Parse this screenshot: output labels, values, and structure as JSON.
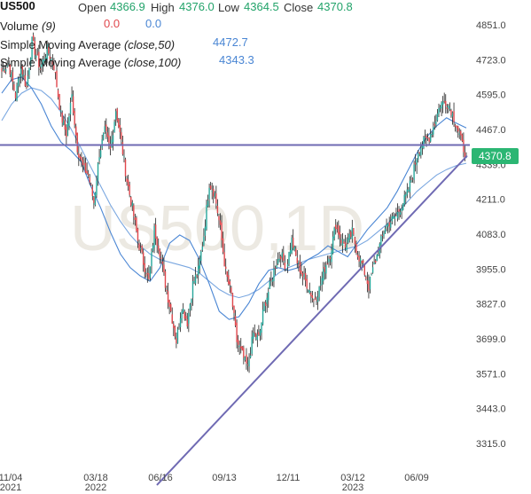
{
  "header": {
    "symbol": "US500",
    "open_label": "Open",
    "open_value": "4366.9",
    "high_label": "High",
    "high_value": "4376.0",
    "low_label": "Low",
    "low_value": "4364.5",
    "close_label": "Close",
    "close_value": "4370.8",
    "volume_label": "Volume",
    "volume_param": "(9)",
    "volume_value_1": "0.0",
    "volume_value_2": "0.0",
    "sma50_label": "Simple Moving Average",
    "sma50_param": "(close,50)",
    "sma50_value": "4472.7",
    "sma100_label": "Simple Moving Average",
    "sma100_param": "(close,100)",
    "sma100_value": "4343.3"
  },
  "watermark": "US500,1D",
  "price_tag": "4370.8",
  "colors": {
    "up": "#26a69a",
    "down": "#e0474c",
    "sma50": "#4a86d4",
    "sma100": "#7aa7e0",
    "trendline": "#6f6ab3",
    "price_tag": "#2bb673"
  },
  "chart_data": {
    "type": "candlestick",
    "y_ticks": [
      "4851.0",
      "4723.0",
      "4595.0",
      "4467.0",
      "4339.0",
      "4211.0",
      "4083.0",
      "3955.0",
      "3827.0",
      "3699.0",
      "3571.0",
      "3443.0",
      "3315.0"
    ],
    "ylim": [
      3260,
      4900
    ],
    "x_ticks": [
      {
        "label": "11/04",
        "sub": "2021"
      },
      {
        "label": "03/18",
        "sub": "2022"
      },
      {
        "label": "06/16",
        "sub": ""
      },
      {
        "label": "09/13",
        "sub": ""
      },
      {
        "label": "12/11",
        "sub": ""
      },
      {
        "label": "03/12",
        "sub": "2023"
      },
      {
        "label": "06/09",
        "sub": ""
      }
    ],
    "close_anchors": [
      [
        0,
        4680
      ],
      [
        5,
        4710
      ],
      [
        10,
        4590
      ],
      [
        14,
        4700
      ],
      [
        18,
        4620
      ],
      [
        22,
        4790
      ],
      [
        28,
        4690
      ],
      [
        33,
        4760
      ],
      [
        38,
        4700
      ],
      [
        43,
        4520
      ],
      [
        47,
        4450
      ],
      [
        51,
        4590
      ],
      [
        55,
        4400
      ],
      [
        59,
        4330
      ],
      [
        63,
        4300
      ],
      [
        67,
        4200
      ],
      [
        71,
        4380
      ],
      [
        75,
        4460
      ],
      [
        79,
        4390
      ],
      [
        83,
        4540
      ],
      [
        87,
        4420
      ],
      [
        91,
        4280
      ],
      [
        95,
        4180
      ],
      [
        99,
        4060
      ],
      [
        103,
        3980
      ],
      [
        107,
        3910
      ],
      [
        111,
        4100
      ],
      [
        115,
        4020
      ],
      [
        119,
        3900
      ],
      [
        123,
        3800
      ],
      [
        127,
        3690
      ],
      [
        131,
        3820
      ],
      [
        135,
        3760
      ],
      [
        139,
        3900
      ],
      [
        143,
        3950
      ],
      [
        147,
        4080
      ],
      [
        151,
        4270
      ],
      [
        155,
        4230
      ],
      [
        159,
        4100
      ],
      [
        163,
        3940
      ],
      [
        167,
        3860
      ],
      [
        171,
        3690
      ],
      [
        175,
        3640
      ],
      [
        179,
        3590
      ],
      [
        183,
        3720
      ],
      [
        187,
        3700
      ],
      [
        191,
        3820
      ],
      [
        195,
        3890
      ],
      [
        199,
        3970
      ],
      [
        203,
        4010
      ],
      [
        207,
        3960
      ],
      [
        211,
        4060
      ],
      [
        215,
        3980
      ],
      [
        219,
        3930
      ],
      [
        223,
        3890
      ],
      [
        227,
        3840
      ],
      [
        231,
        3880
      ],
      [
        235,
        3960
      ],
      [
        239,
        4010
      ],
      [
        243,
        4120
      ],
      [
        247,
        4060
      ],
      [
        251,
        4040
      ],
      [
        255,
        4090
      ],
      [
        259,
        4010
      ],
      [
        263,
        3960
      ],
      [
        267,
        3890
      ],
      [
        271,
        3970
      ],
      [
        275,
        4040
      ],
      [
        279,
        4110
      ],
      [
        283,
        4130
      ],
      [
        287,
        4150
      ],
      [
        291,
        4190
      ],
      [
        295,
        4230
      ],
      [
        299,
        4300
      ],
      [
        303,
        4390
      ],
      [
        307,
        4420
      ],
      [
        311,
        4440
      ],
      [
        315,
        4490
      ],
      [
        319,
        4560
      ],
      [
        323,
        4570
      ],
      [
        327,
        4540
      ],
      [
        331,
        4480
      ],
      [
        335,
        4410
      ],
      [
        338,
        4371
      ]
    ],
    "sma50": [
      4600,
      4650,
      4660,
      4620,
      4560,
      4480,
      4420,
      4390,
      4350,
      4260,
      4180,
      4090,
      4010,
      3960,
      3930,
      3910,
      3960,
      4050,
      4080,
      4060,
      3990,
      3900,
      3800,
      3770,
      3780,
      3830,
      3900,
      3950,
      3960,
      3950,
      3960,
      3990,
      4010,
      4040,
      4020,
      4000,
      4050,
      4100,
      4140,
      4180,
      4240,
      4310,
      4380,
      4440,
      4480,
      4510,
      4490,
      4473
    ],
    "sma100": [
      4500,
      4560,
      4600,
      4620,
      4610,
      4580,
      4530,
      4470,
      4400,
      4330,
      4260,
      4190,
      4130,
      4080,
      4040,
      4010,
      3990,
      3980,
      3970,
      3960,
      3940,
      3910,
      3880,
      3860,
      3850,
      3860,
      3880,
      3910,
      3940,
      3960,
      3975,
      3990,
      4000,
      4010,
      4020,
      4030,
      4040,
      4060,
      4090,
      4120,
      4160,
      4200,
      4240,
      4270,
      4300,
      4320,
      4335,
      4343
    ],
    "horizontal_line": 4410,
    "trendline": [
      [
        118,
        3190
      ],
      [
        338,
        4371
      ]
    ]
  }
}
